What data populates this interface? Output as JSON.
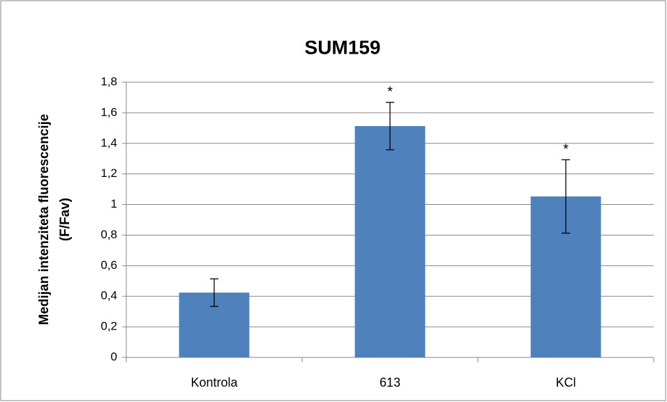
{
  "chart_data": {
    "type": "bar",
    "title": "SUM159",
    "ylabel": [
      "Medijan intenziteta fluorescencije",
      "(F/Fav)"
    ],
    "categories": [
      "Kontrola",
      "613",
      "KCl"
    ],
    "series": [
      {
        "color": "#4f81bd",
        "values": [
          0.424,
          1.513,
          1.053
        ],
        "errors": [
          0.09,
          0.155,
          0.24
        ]
      }
    ],
    "annotations": [
      {
        "text": "*",
        "category": "613"
      },
      {
        "text": "*",
        "category": "KCl"
      }
    ],
    "ylim": [
      0,
      1.8
    ],
    "yticks": [
      0,
      {
        "value": 0.2,
        "label": "0,2"
      },
      {
        "value": 0.4,
        "label": "0,4"
      },
      {
        "value": 0.6,
        "label": "0,6"
      },
      {
        "value": 0.8,
        "label": "0,8"
      },
      1,
      {
        "value": 1.2,
        "label": "1,2"
      },
      {
        "value": 1.4,
        "label": "1,4"
      },
      {
        "value": 1.6,
        "label": "1,6"
      },
      {
        "value": 1.8,
        "label": "1,8"
      }
    ],
    "grid": true
  }
}
